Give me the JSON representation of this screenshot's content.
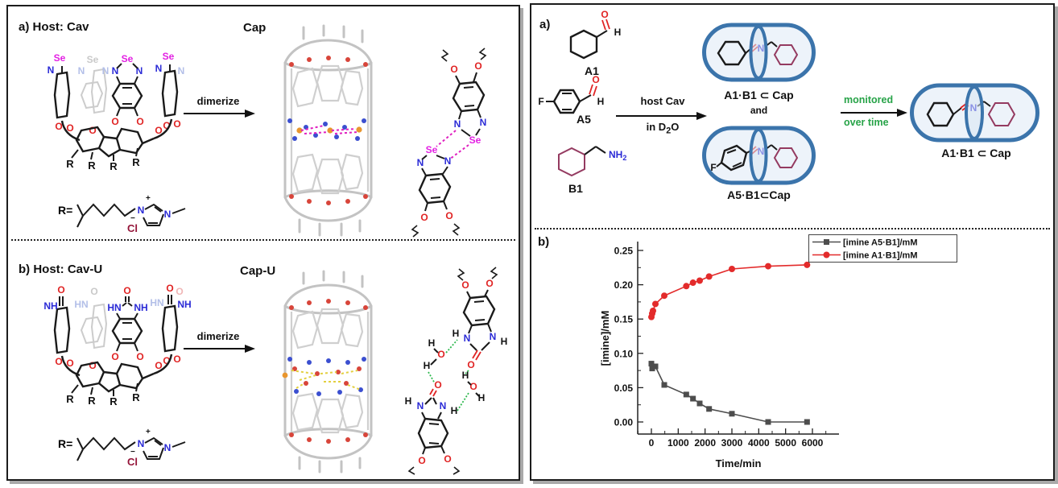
{
  "left_panel": {
    "section_a": {
      "heading": "a) Host: Cav",
      "product_label": "Cap",
      "arrow_label": "dimerize"
    },
    "section_b": {
      "heading": "b) Host: Cav-U",
      "product_label": "Cap-U",
      "arrow_label": "dimerize"
    },
    "r_group": {
      "prefix": "R=",
      "counterion": "Cl",
      "plus": "+",
      "minus": "−"
    }
  },
  "right_panel": {
    "section_a": {
      "label": "a)",
      "aldehyde1": "A1",
      "aldehyde2": "A5",
      "amine": "B1",
      "arrow_top": "host Cav",
      "arrow_bottom_pre": "in D",
      "arrow_bottom_sub": "2",
      "arrow_bottom_post": "O",
      "complex_top": "A1·B1 ⊂ Cap",
      "and_label": "and",
      "complex_bottom": "A5·B1⊂Cap",
      "monitor_line1": "monitored",
      "monitor_line2": "over time",
      "complex_product": "A1·B1 ⊂ Cap"
    },
    "section_b": {
      "label": "b)"
    }
  },
  "atoms": {
    "se": "Se",
    "n": "N",
    "o": "O",
    "h": "H",
    "f": "F",
    "r": "R",
    "hn": "HN",
    "nh": "NH",
    "nh2_base": "NH",
    "sub2": "2",
    "cl": "Cl",
    "plus": "+",
    "minus": "−"
  },
  "colors": {
    "selenium_magenta": "#e320e3",
    "nitrogen_blue": "#2b2bd6",
    "oxygen_red": "#e02424",
    "chloride_darkred": "#941438",
    "amine_ring_maroon": "#943a60",
    "capsule_blue": "#3b74ab",
    "capsule_fill": "#edf3fa",
    "monitor_green": "#27a348",
    "series_gray": "#4d4d4d",
    "series_red": "#e32b2b"
  },
  "chart_data": {
    "type": "line",
    "title": "",
    "xlabel": "Time/min",
    "ylabel": "[imine]/mM",
    "xlim": [
      -500,
      7000
    ],
    "ylim": [
      -0.018,
      0.265
    ],
    "xticks": [
      0,
      1000,
      2000,
      3000,
      4000,
      5000,
      6000
    ],
    "yticks": [
      0.0,
      0.05,
      0.1,
      0.15,
      0.2,
      0.25
    ],
    "grid": false,
    "legend_position": "top-right",
    "series": [
      {
        "name": "[imine A5·B1]/mM",
        "marker": "square",
        "color": "#4d4d4d",
        "points": [
          [
            0,
            0.085
          ],
          [
            30,
            0.078
          ],
          [
            150,
            0.081
          ],
          [
            480,
            0.054
          ],
          [
            1300,
            0.04
          ],
          [
            1550,
            0.034
          ],
          [
            1800,
            0.027
          ],
          [
            2150,
            0.019
          ],
          [
            3000,
            0.012
          ],
          [
            4350,
            0.0
          ],
          [
            5800,
            0.0
          ]
        ]
      },
      {
        "name": "[imine A1·B1]/mM",
        "marker": "circle",
        "color": "#e32b2b",
        "points": [
          [
            0,
            0.153
          ],
          [
            30,
            0.158
          ],
          [
            60,
            0.162
          ],
          [
            150,
            0.172
          ],
          [
            480,
            0.184
          ],
          [
            1300,
            0.198
          ],
          [
            1550,
            0.203
          ],
          [
            1800,
            0.206
          ],
          [
            2150,
            0.212
          ],
          [
            3000,
            0.223
          ],
          [
            4350,
            0.227
          ],
          [
            5800,
            0.229
          ]
        ]
      }
    ]
  }
}
